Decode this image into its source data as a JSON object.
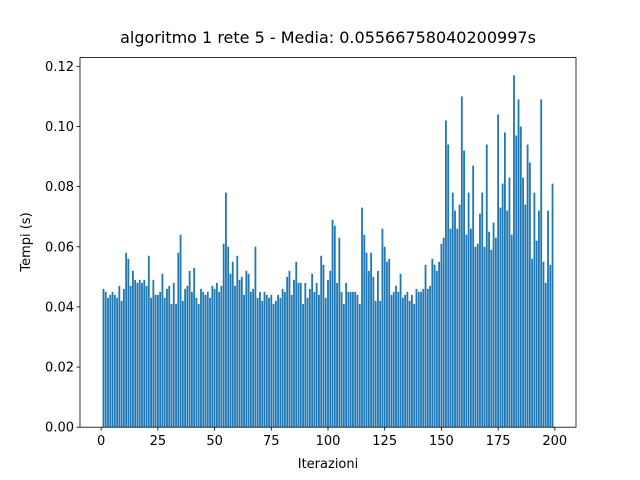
{
  "chart_data": {
    "type": "bar",
    "title": "algoritmo 1 rete 5 - Media: 0.05566758040200997s",
    "x_label": "Iterazioni",
    "y_label": "Tempi (s)",
    "color": "#1f77b4",
    "bar_width": 0.8,
    "x": [
      1,
      2,
      3,
      4,
      5,
      6,
      7,
      8,
      9,
      10,
      11,
      12,
      13,
      14,
      15,
      16,
      17,
      18,
      19,
      20,
      21,
      22,
      23,
      24,
      25,
      26,
      27,
      28,
      29,
      30,
      31,
      32,
      33,
      34,
      35,
      36,
      37,
      38,
      39,
      40,
      41,
      42,
      43,
      44,
      45,
      46,
      47,
      48,
      49,
      50,
      51,
      52,
      53,
      54,
      55,
      56,
      57,
      58,
      59,
      60,
      61,
      62,
      63,
      64,
      65,
      66,
      67,
      68,
      69,
      70,
      71,
      72,
      73,
      74,
      75,
      76,
      77,
      78,
      79,
      80,
      81,
      82,
      83,
      84,
      85,
      86,
      87,
      88,
      89,
      90,
      91,
      92,
      93,
      94,
      95,
      96,
      97,
      98,
      99,
      100,
      101,
      102,
      103,
      104,
      105,
      106,
      107,
      108,
      109,
      110,
      111,
      112,
      113,
      114,
      115,
      116,
      117,
      118,
      119,
      120,
      121,
      122,
      123,
      124,
      125,
      126,
      127,
      128,
      129,
      130,
      131,
      132,
      133,
      134,
      135,
      136,
      137,
      138,
      139,
      140,
      141,
      142,
      143,
      144,
      145,
      146,
      147,
      148,
      149,
      150,
      151,
      152,
      153,
      154,
      155,
      156,
      157,
      158,
      159,
      160,
      161,
      162,
      163,
      164,
      165,
      166,
      167,
      168,
      169,
      170,
      171,
      172,
      173,
      174,
      175,
      176,
      177,
      178,
      179,
      180,
      181,
      182,
      183,
      184,
      185,
      186,
      187,
      188,
      189,
      190,
      191,
      192,
      193,
      194,
      195,
      196,
      197,
      198,
      199
    ],
    "values": [
      0.046,
      0.045,
      0.043,
      0.044,
      0.045,
      0.044,
      0.043,
      0.047,
      0.042,
      0.046,
      0.058,
      0.056,
      0.047,
      0.052,
      0.049,
      0.048,
      0.049,
      0.048,
      0.049,
      0.047,
      0.057,
      0.043,
      0.049,
      0.044,
      0.044,
      0.045,
      0.051,
      0.043,
      0.046,
      0.047,
      0.041,
      0.048,
      0.041,
      0.058,
      0.064,
      0.042,
      0.046,
      0.047,
      0.052,
      0.045,
      0.053,
      0.043,
      0.041,
      0.046,
      0.045,
      0.044,
      0.045,
      0.043,
      0.047,
      0.046,
      0.048,
      0.045,
      0.047,
      0.061,
      0.078,
      0.06,
      0.051,
      0.055,
      0.047,
      0.057,
      0.049,
      0.05,
      0.044,
      0.052,
      0.051,
      0.045,
      0.046,
      0.06,
      0.043,
      0.045,
      0.042,
      0.045,
      0.044,
      0.043,
      0.044,
      0.041,
      0.042,
      0.044,
      0.043,
      0.046,
      0.045,
      0.05,
      0.052,
      0.044,
      0.049,
      0.055,
      0.048,
      0.048,
      0.041,
      0.048,
      0.043,
      0.046,
      0.051,
      0.045,
      0.048,
      0.044,
      0.057,
      0.054,
      0.043,
      0.049,
      0.052,
      0.069,
      0.067,
      0.048,
      0.063,
      0.045,
      0.041,
      0.048,
      0.045,
      0.045,
      0.045,
      0.045,
      0.044,
      0.041,
      0.073,
      0.064,
      0.058,
      0.052,
      0.058,
      0.05,
      0.042,
      0.052,
      0.042,
      0.066,
      0.06,
      0.055,
      0.056,
      0.044,
      0.045,
      0.047,
      0.045,
      0.051,
      0.043,
      0.044,
      0.045,
      0.042,
      0.044,
      0.041,
      0.046,
      0.045,
      0.045,
      0.046,
      0.054,
      0.046,
      0.047,
      0.056,
      0.054,
      0.052,
      0.055,
      0.061,
      0.063,
      0.102,
      0.094,
      0.066,
      0.078,
      0.072,
      0.066,
      0.074,
      0.11,
      0.092,
      0.064,
      0.078,
      0.066,
      0.087,
      0.06,
      0.061,
      0.071,
      0.078,
      0.06,
      0.094,
      0.065,
      0.059,
      0.068,
      0.063,
      0.104,
      0.073,
      0.081,
      0.098,
      0.072,
      0.083,
      0.064,
      0.117,
      0.097,
      0.109,
      0.1,
      0.083,
      0.074,
      0.094,
      0.088,
      0.056,
      0.078,
      0.062,
      0.072,
      0.109,
      0.055,
      0.048,
      0.072,
      0.054,
      0.081
    ],
    "xlim": [
      -9.34,
      209.34
    ],
    "xticks": [
      0,
      25,
      50,
      75,
      100,
      125,
      150,
      175,
      200
    ],
    "ylim": [
      0,
      0.1229
    ],
    "yticks": [
      {
        "value": 0,
        "label": "0.00"
      },
      {
        "value": 0.02,
        "label": "0.02"
      },
      {
        "value": 0.04,
        "label": "0.04"
      },
      {
        "value": 0.06,
        "label": "0.06"
      },
      {
        "value": 0.08,
        "label": "0.08"
      },
      {
        "value": 0.1,
        "label": "0.10"
      },
      {
        "value": 0.12,
        "label": "0.12"
      }
    ]
  }
}
